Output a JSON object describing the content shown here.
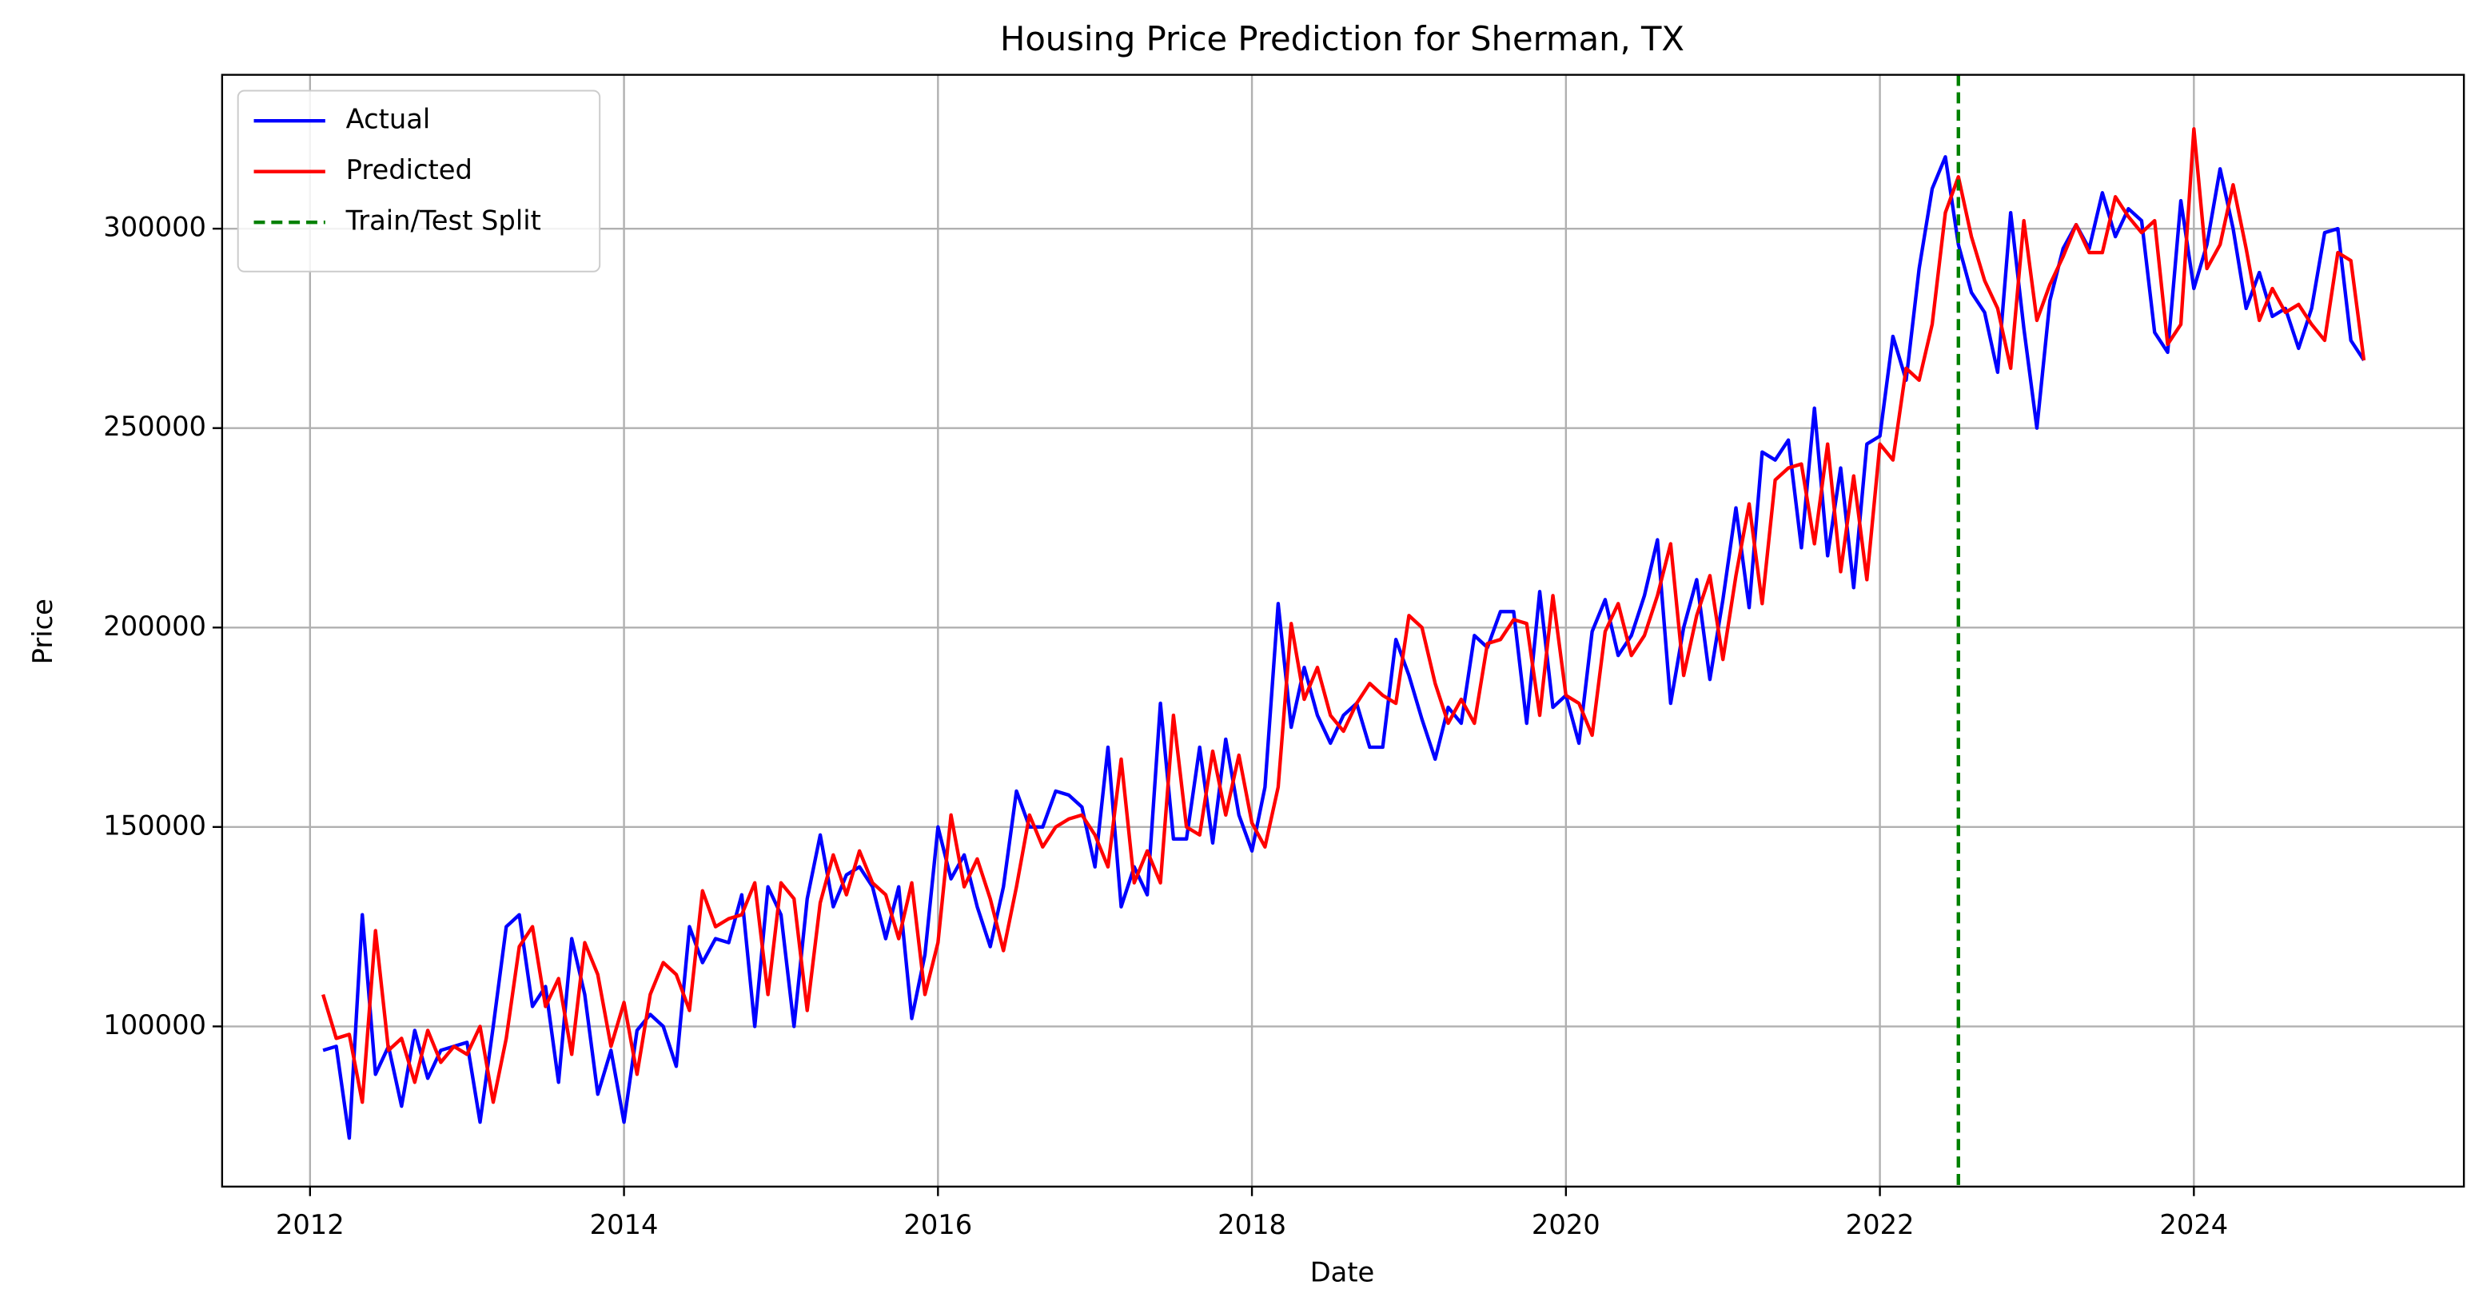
{
  "chart_data": {
    "type": "line",
    "title": "Housing Price Prediction for Sherman, TX",
    "xlabel": "Date",
    "ylabel": "Price",
    "xlim": [
      2011.44,
      2025.72
    ],
    "ylim": [
      59840,
      338570
    ],
    "xticks": [
      2012,
      2014,
      2016,
      2018,
      2020,
      2022,
      2024
    ],
    "yticks": [
      100000,
      150000,
      200000,
      250000,
      300000
    ],
    "grid": true,
    "legend": "upper left",
    "x": [
      2012.083,
      2012.167,
      2012.25,
      2012.333,
      2012.417,
      2012.5,
      2012.583,
      2012.667,
      2012.75,
      2012.833,
      2012.917,
      2013,
      2013.083,
      2013.167,
      2013.25,
      2013.333,
      2013.417,
      2013.5,
      2013.583,
      2013.667,
      2013.75,
      2013.833,
      2013.917,
      2014,
      2014.083,
      2014.167,
      2014.25,
      2014.333,
      2014.417,
      2014.5,
      2014.583,
      2014.667,
      2014.75,
      2014.833,
      2014.917,
      2015,
      2015.083,
      2015.167,
      2015.25,
      2015.333,
      2015.417,
      2015.5,
      2015.583,
      2015.667,
      2015.75,
      2015.833,
      2015.917,
      2016,
      2016.083,
      2016.167,
      2016.25,
      2016.333,
      2016.417,
      2016.5,
      2016.583,
      2016.667,
      2016.75,
      2016.833,
      2016.917,
      2017,
      2017.083,
      2017.167,
      2017.25,
      2017.333,
      2017.417,
      2017.5,
      2017.583,
      2017.667,
      2017.75,
      2017.833,
      2017.917,
      2018,
      2018.083,
      2018.167,
      2018.25,
      2018.333,
      2018.417,
      2018.5,
      2018.583,
      2018.667,
      2018.75,
      2018.833,
      2018.917,
      2019,
      2019.083,
      2019.167,
      2019.25,
      2019.333,
      2019.417,
      2019.5,
      2019.583,
      2019.667,
      2019.75,
      2019.833,
      2019.917,
      2020,
      2020.083,
      2020.167,
      2020.25,
      2020.333,
      2020.417,
      2020.5,
      2020.583,
      2020.667,
      2020.75,
      2020.833,
      2020.917,
      2021,
      2021.083,
      2021.167,
      2021.25,
      2021.333,
      2021.417,
      2021.5,
      2021.583,
      2021.667,
      2021.75,
      2021.833,
      2021.917,
      2022,
      2022.083,
      2022.167,
      2022.25,
      2022.333,
      2022.417,
      2022.5,
      2022.583,
      2022.667,
      2022.75,
      2022.833,
      2022.917,
      2023,
      2023.083,
      2023.167,
      2023.25,
      2023.333,
      2023.417,
      2023.5,
      2023.583,
      2023.667,
      2023.75,
      2023.833,
      2023.917,
      2024,
      2024.083,
      2024.167,
      2024.25,
      2024.333,
      2024.417,
      2024.5,
      2024.583,
      2024.667,
      2024.75,
      2024.833,
      2024.917,
      2025,
      2025.083
    ],
    "series": [
      {
        "name": "Actual",
        "color": "#0000ff",
        "values": [
          94000,
          95000,
          72000,
          128000,
          88000,
          95000,
          80000,
          99000,
          87000,
          94000,
          95000,
          96000,
          76000,
          100000,
          125000,
          128000,
          105000,
          110000,
          86000,
          122000,
          108000,
          83000,
          94000,
          76000,
          99000,
          103000,
          100000,
          90000,
          125000,
          116000,
          122000,
          121000,
          133000,
          100000,
          135000,
          128000,
          100000,
          132000,
          148000,
          130000,
          138000,
          140000,
          135000,
          122000,
          135000,
          102000,
          118000,
          150000,
          137000,
          143000,
          130000,
          120000,
          135000,
          159000,
          150000,
          150000,
          159000,
          158000,
          155000,
          140000,
          170000,
          130000,
          140000,
          133000,
          181000,
          147000,
          147000,
          170000,
          146000,
          172000,
          153000,
          144000,
          160000,
          206000,
          175000,
          190000,
          178000,
          171000,
          178000,
          181000,
          170000,
          170000,
          197000,
          188000,
          177000,
          167000,
          180000,
          176000,
          198000,
          195000,
          204000,
          204000,
          176000,
          209000,
          180000,
          183000,
          171000,
          199000,
          207000,
          193000,
          198000,
          208000,
          222000,
          181000,
          200000,
          212000,
          187000,
          207000,
          230000,
          205000,
          244000,
          242000,
          247000,
          220000,
          255000,
          218000,
          240000,
          210000,
          246000,
          248000,
          273000,
          262000,
          290000,
          310000,
          318000,
          296000,
          284000,
          279000,
          264000,
          304000,
          275000,
          250000,
          282000,
          295000,
          301000,
          295000,
          309000,
          298000,
          305000,
          302000,
          274000,
          269000,
          307000,
          285000,
          296000,
          315000,
          300000,
          280000,
          289000,
          278000,
          280000,
          270000,
          280000,
          299000,
          300000,
          272000,
          267000
        ]
      },
      {
        "name": "Predicted",
        "color": "#ff0000",
        "values": [
          108000,
          97000,
          98000,
          81000,
          124000,
          94000,
          97000,
          86000,
          99000,
          91000,
          95000,
          93000,
          100000,
          81000,
          97000,
          120000,
          125000,
          105000,
          112000,
          93000,
          121000,
          113000,
          95000,
          106000,
          88000,
          108000,
          116000,
          113000,
          104000,
          134000,
          125000,
          127000,
          128000,
          136000,
          108000,
          136000,
          132000,
          104000,
          131000,
          143000,
          133000,
          144000,
          136000,
          133000,
          122000,
          136000,
          108000,
          121000,
          153000,
          135000,
          142000,
          132000,
          119000,
          135000,
          153000,
          145000,
          150000,
          152000,
          153000,
          148000,
          140000,
          167000,
          136000,
          144000,
          136000,
          178000,
          150000,
          148000,
          169000,
          153000,
          168000,
          151000,
          145000,
          160000,
          201000,
          182000,
          190000,
          178000,
          174000,
          181000,
          186000,
          183000,
          181000,
          203000,
          200000,
          186000,
          176000,
          182000,
          176000,
          196000,
          197000,
          202000,
          201000,
          178000,
          208000,
          183000,
          181000,
          173000,
          199000,
          206000,
          193000,
          198000,
          208000,
          221000,
          188000,
          203000,
          213000,
          192000,
          213000,
          231000,
          206000,
          237000,
          240000,
          241000,
          221000,
          246000,
          214000,
          238000,
          212000,
          246000,
          242000,
          265000,
          262000,
          276000,
          304000,
          313000,
          298000,
          287000,
          280000,
          265000,
          302000,
          277000,
          286000,
          293000,
          301000,
          294000,
          294000,
          308000,
          303000,
          299000,
          302000,
          271000,
          276000,
          325000,
          290000,
          296000,
          311000,
          295000,
          277000,
          285000,
          279000,
          281000,
          276000,
          272000,
          294000,
          292000,
          267000
        ]
      }
    ],
    "vlines": [
      {
        "name": "Train/Test Split",
        "color": "#008000",
        "x": 2022.5,
        "style": "dashed"
      }
    ]
  }
}
